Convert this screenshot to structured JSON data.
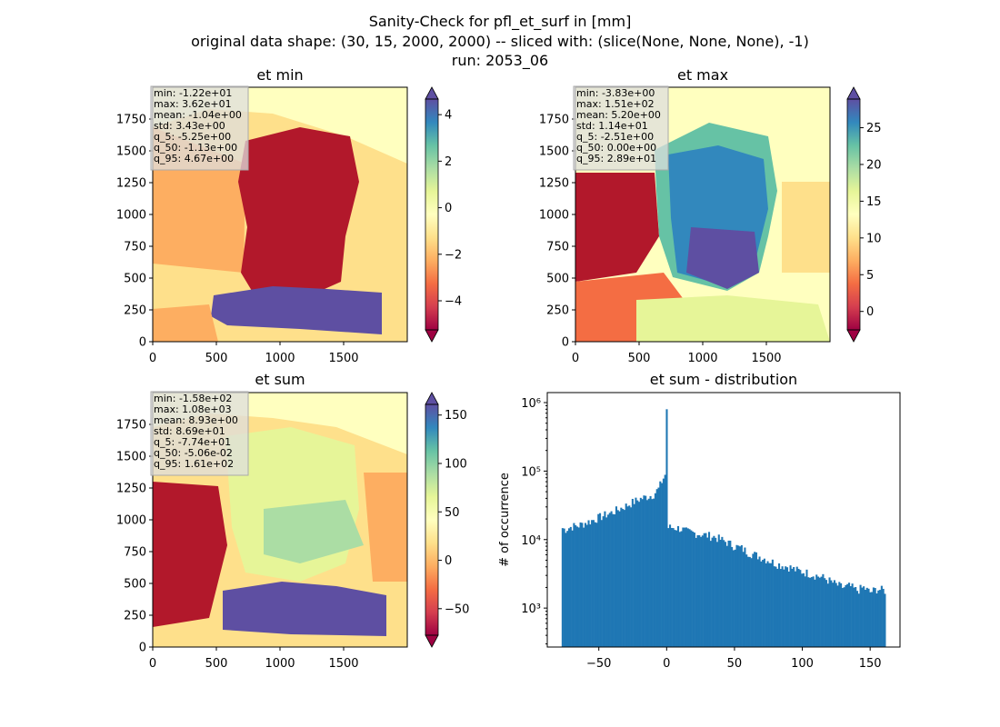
{
  "figure": {
    "title_lines": [
      "Sanity-Check for pfl_et_surf in [mm]",
      "original data shape: (30, 15, 2000, 2000) -- sliced with: (slice(None, None, None), -1)",
      "run: 2053_06"
    ]
  },
  "chart_data": [
    {
      "type": "heatmap",
      "title": "et min",
      "colormap": "Spectral",
      "xlim": [
        0,
        2000
      ],
      "ylim": [
        0,
        2000
      ],
      "x_ticks": [
        "0",
        "500",
        "1000",
        "1500"
      ],
      "y_ticks": [
        "0",
        "250",
        "500",
        "750",
        "1000",
        "1250",
        "1500",
        "1750"
      ],
      "colorbar": {
        "range": [
          -5.25,
          4.67
        ],
        "ticks": [
          "−4",
          "−2",
          "0",
          "2",
          "4"
        ],
        "tick_values": [
          -4,
          -2,
          0,
          2,
          4
        ],
        "extend": "both"
      },
      "stats": {
        "min": "-1.22e+01",
        "max": "3.62e+01",
        "mean": "-1.04e+00",
        "std": "3.43e+00",
        "q_5": "-5.25e+00",
        "q_50": "-1.13e+00",
        "q_95": "4.67e+00"
      }
    },
    {
      "type": "heatmap",
      "title": "et max",
      "colormap": "Spectral",
      "xlim": [
        0,
        2000
      ],
      "ylim": [
        0,
        2000
      ],
      "x_ticks": [
        "0",
        "500",
        "1000",
        "1500"
      ],
      "y_ticks": [
        "0",
        "250",
        "500",
        "750",
        "1000",
        "1250",
        "1500",
        "1750"
      ],
      "colorbar": {
        "range": [
          -2.51,
          28.9
        ],
        "ticks": [
          "0",
          "5",
          "10",
          "15",
          "20",
          "25"
        ],
        "tick_values": [
          0,
          5,
          10,
          15,
          20,
          25
        ],
        "extend": "both"
      },
      "stats": {
        "min": "-3.83e+00",
        "max": "1.51e+02",
        "mean": "5.20e+00",
        "std": "1.14e+01",
        "q_5": "-2.51e+00",
        "q_50": "0.00e+00",
        "q_95": "2.89e+01"
      }
    },
    {
      "type": "heatmap",
      "title": "et sum",
      "colormap": "Spectral",
      "xlim": [
        0,
        2000
      ],
      "ylim": [
        0,
        2000
      ],
      "x_ticks": [
        "0",
        "500",
        "1000",
        "1500"
      ],
      "y_ticks": [
        "0",
        "250",
        "500",
        "750",
        "1000",
        "1250",
        "1500",
        "1750"
      ],
      "colorbar": {
        "range": [
          -77.4,
          161
        ],
        "ticks": [
          "−50",
          "0",
          "50",
          "100",
          "150"
        ],
        "tick_values": [
          -50,
          0,
          50,
          100,
          150
        ],
        "extend": "both"
      },
      "stats": {
        "min": "-1.58e+02",
        "max": "1.08e+03",
        "mean": "8.93e+00",
        "std": "8.69e+01",
        "q_5": "-7.74e+01",
        "q_50": "-5.06e-02",
        "q_95": "1.61e+02"
      }
    },
    {
      "type": "bar",
      "title": "et sum - distribution",
      "xlabel": "",
      "ylabel": "# of occurrence",
      "xlim": [
        -88,
        172
      ],
      "ylim": [
        270,
        1400000
      ],
      "yscale": "log",
      "x_ticks": [
        "−50",
        "0",
        "50",
        "100",
        "150"
      ],
      "x_tick_values": [
        -50,
        0,
        50,
        100,
        150
      ],
      "y_ticks": [
        "10³",
        "10⁴",
        "10⁵",
        "10⁶"
      ],
      "y_tick_values": [
        1000,
        10000,
        100000,
        1000000
      ],
      "bar_color": "#1f77b4",
      "bins": {
        "start": -77.4,
        "end": 161,
        "width": 1.2
      },
      "anchor_counts": [
        [
          -77.4,
          15000
        ],
        [
          -75,
          14000
        ],
        [
          -70,
          15500
        ],
        [
          -65,
          16000
        ],
        [
          -60,
          17500
        ],
        [
          -55,
          19000
        ],
        [
          -50,
          21000
        ],
        [
          -45,
          23000
        ],
        [
          -40,
          25000
        ],
        [
          -35,
          28000
        ],
        [
          -30,
          31000
        ],
        [
          -25,
          35000
        ],
        [
          -20,
          39000
        ],
        [
          -15,
          42000
        ],
        [
          -10,
          45000
        ],
        [
          -6,
          55000
        ],
        [
          -3,
          75000
        ],
        [
          -1,
          90000
        ],
        [
          -0.6,
          800000
        ],
        [
          0.6,
          15000
        ],
        [
          5,
          15000
        ],
        [
          10,
          14500
        ],
        [
          15,
          13000
        ],
        [
          20,
          12500
        ],
        [
          25,
          12000
        ],
        [
          30,
          11500
        ],
        [
          35,
          11000
        ],
        [
          40,
          10000
        ],
        [
          45,
          9000
        ],
        [
          50,
          8000
        ],
        [
          55,
          7500
        ],
        [
          60,
          6500
        ],
        [
          65,
          6000
        ],
        [
          70,
          5500
        ],
        [
          75,
          5000
        ],
        [
          80,
          4500
        ],
        [
          85,
          4200
        ],
        [
          90,
          4000
        ],
        [
          95,
          3600
        ],
        [
          100,
          3400
        ],
        [
          105,
          3200
        ],
        [
          110,
          3000
        ],
        [
          115,
          2800
        ],
        [
          120,
          2500
        ],
        [
          125,
          2200
        ],
        [
          130,
          2000
        ],
        [
          135,
          2100
        ],
        [
          140,
          1800
        ],
        [
          145,
          2000
        ],
        [
          150,
          1700
        ],
        [
          155,
          1900
        ],
        [
          161,
          1800
        ]
      ]
    }
  ]
}
